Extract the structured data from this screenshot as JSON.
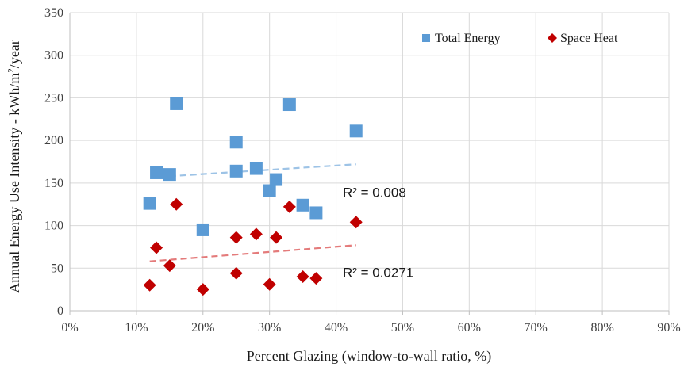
{
  "chart_data": {
    "type": "scatter",
    "title": "",
    "xlabel": "Percent Glazing (window-to-wall ratio, %)",
    "ylabel_parts": [
      "Annual Energy Use Intensity - kWh/m",
      "2",
      "/year"
    ],
    "xlim": [
      0,
      90
    ],
    "ylim": [
      0,
      350
    ],
    "x_ticks": [
      0,
      10,
      20,
      30,
      40,
      50,
      60,
      70,
      80,
      90
    ],
    "x_tick_labels": [
      "0%",
      "10%",
      "20%",
      "30%",
      "40%",
      "50%",
      "60%",
      "70%",
      "80%",
      "90%"
    ],
    "y_ticks": [
      0,
      50,
      100,
      150,
      200,
      250,
      300,
      350
    ],
    "y_tick_labels": [
      "0",
      "50",
      "100",
      "150",
      "200",
      "250",
      "300",
      "350"
    ],
    "grid": "vertical and horizontal",
    "legend_position": "top-right",
    "series": [
      {
        "name": "Total Energy",
        "marker": "square",
        "color": "#5B9BD5",
        "points": [
          [
            12,
            126
          ],
          [
            13,
            162
          ],
          [
            15,
            160
          ],
          [
            16,
            243
          ],
          [
            20,
            95
          ],
          [
            25,
            198
          ],
          [
            25,
            164
          ],
          [
            28,
            167
          ],
          [
            30,
            141
          ],
          [
            31,
            154
          ],
          [
            33,
            242
          ],
          [
            35,
            124
          ],
          [
            37,
            115
          ],
          [
            43,
            211
          ]
        ],
        "trendline": {
          "x": [
            15,
            43
          ],
          "y": [
            158,
            172
          ],
          "color": "#9DC3E6",
          "r2_label": "R² = 0.008"
        }
      },
      {
        "name": "Space Heat",
        "marker": "diamond",
        "color": "#C00000",
        "points": [
          [
            12,
            30
          ],
          [
            13,
            74
          ],
          [
            15,
            53
          ],
          [
            16,
            125
          ],
          [
            20,
            25
          ],
          [
            25,
            86
          ],
          [
            25,
            44
          ],
          [
            28,
            90
          ],
          [
            30,
            31
          ],
          [
            31,
            86
          ],
          [
            33,
            122
          ],
          [
            35,
            40
          ],
          [
            37,
            38
          ],
          [
            43,
            104
          ]
        ],
        "trendline": {
          "x": [
            12,
            43
          ],
          "y": [
            58,
            77
          ],
          "color": "#E47B7B",
          "r2_label": "R² = 0.0271"
        }
      }
    ]
  }
}
